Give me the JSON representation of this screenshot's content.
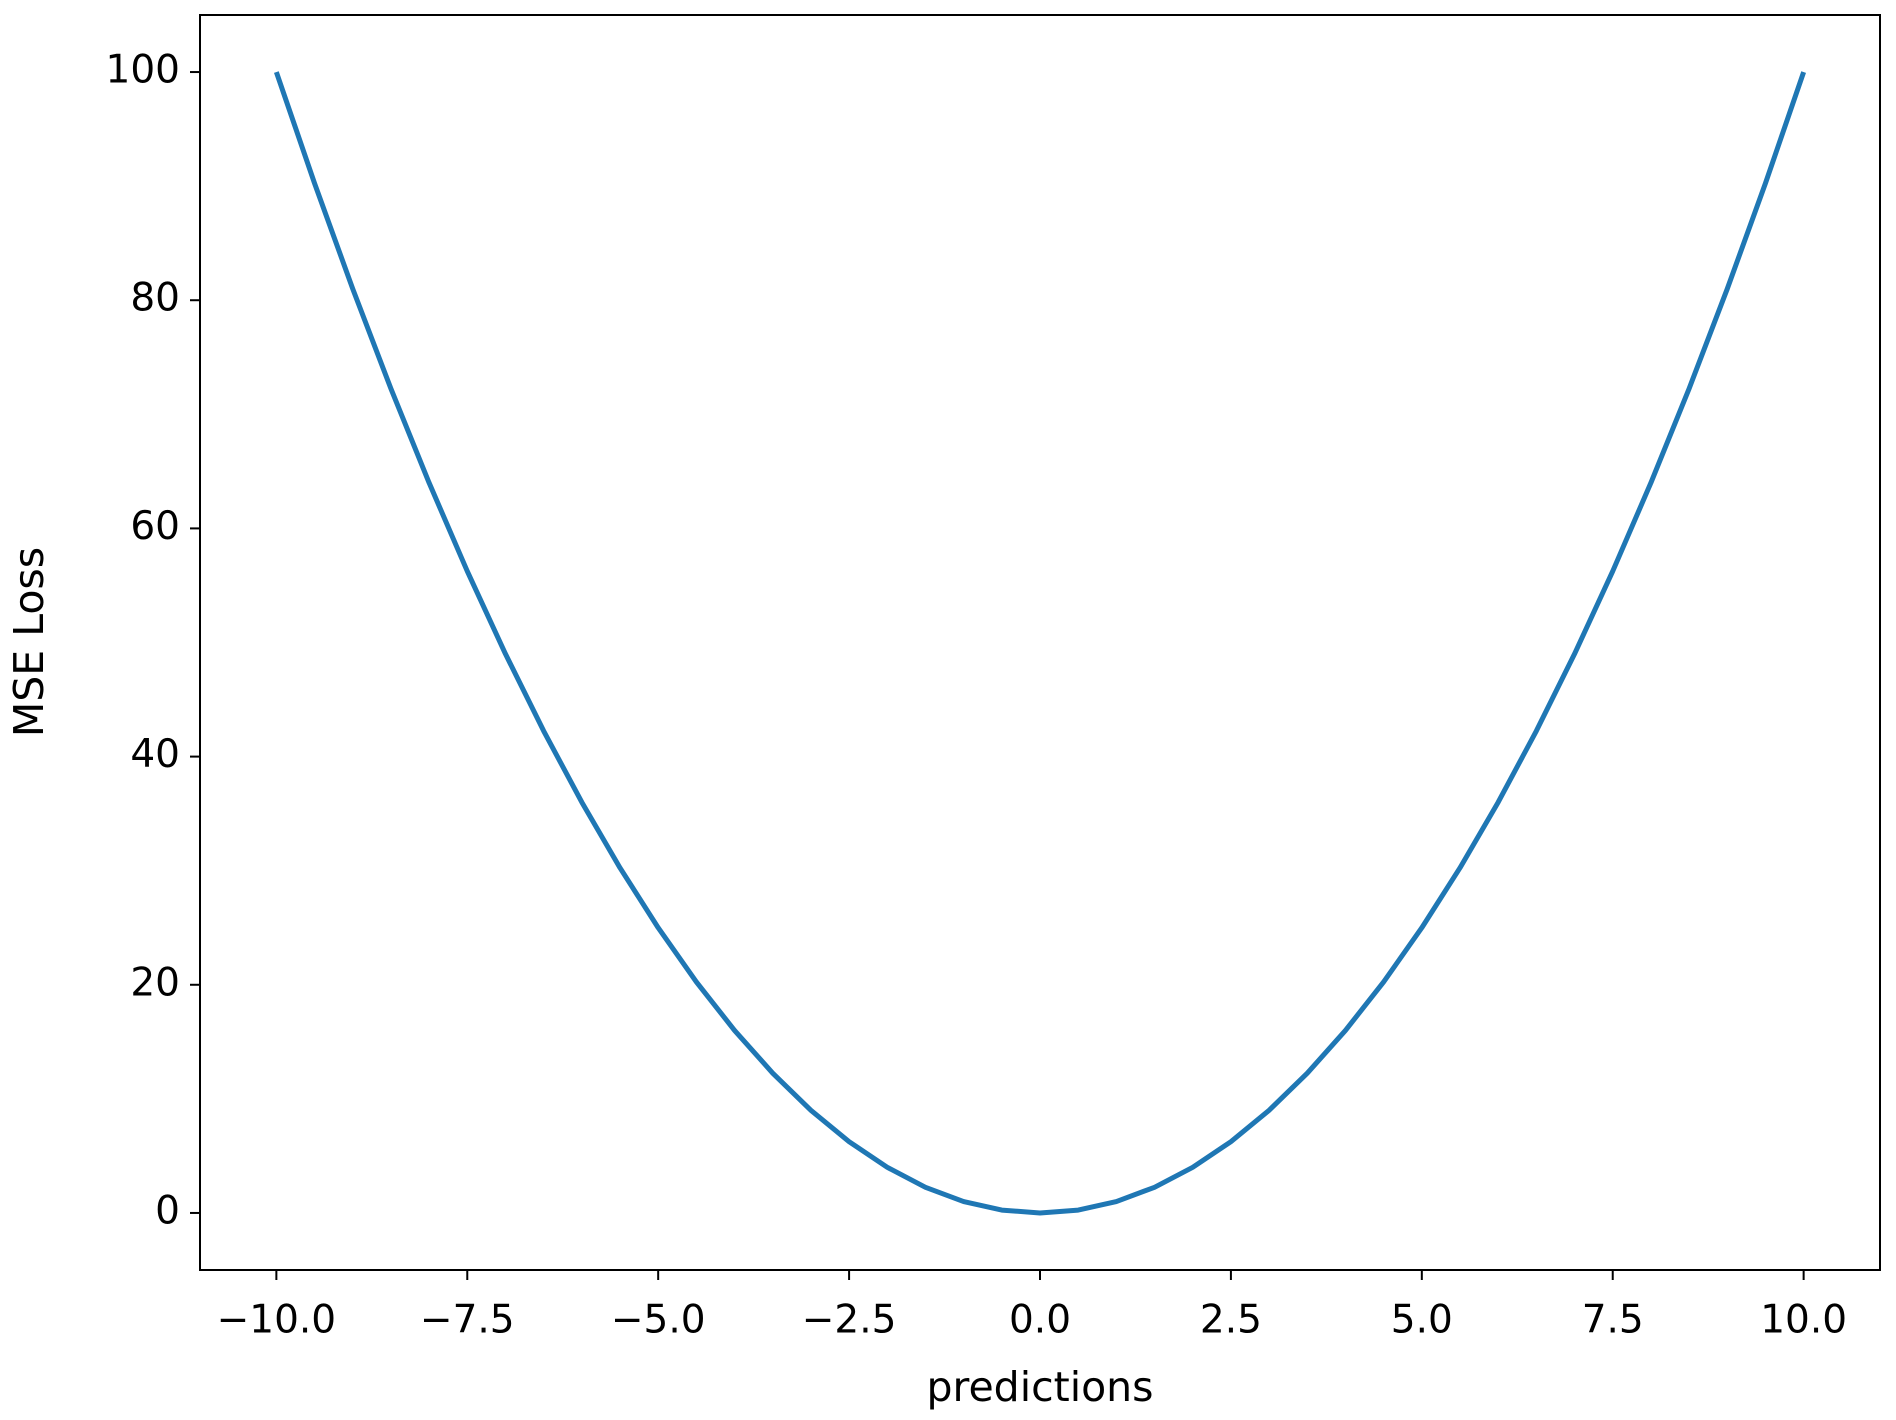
{
  "chart_data": {
    "type": "line",
    "xlabel": "predictions",
    "ylabel": "MSE Loss",
    "x": [
      -10,
      -9.5,
      -9,
      -8.5,
      -8,
      -7.5,
      -7,
      -6.5,
      -6,
      -5.5,
      -5,
      -4.5,
      -4,
      -3.5,
      -3,
      -2.5,
      -2,
      -1.5,
      -1,
      -0.5,
      0,
      0.5,
      1,
      1.5,
      2,
      2.5,
      3,
      3.5,
      4,
      4.5,
      5,
      5.5,
      6,
      6.5,
      7,
      7.5,
      8,
      8.5,
      9,
      9.5,
      10
    ],
    "values": [
      100,
      90.25,
      81,
      72.25,
      64,
      56.25,
      49,
      42.25,
      36,
      30.25,
      25,
      20.25,
      16,
      12.25,
      9,
      6.25,
      4,
      2.25,
      1,
      0.25,
      0,
      0.25,
      1,
      2.25,
      4,
      6.25,
      9,
      12.25,
      16,
      20.25,
      25,
      30.25,
      36,
      42.25,
      49,
      56.25,
      64,
      72.25,
      81,
      90.25,
      100
    ],
    "color": "#1f77b4",
    "xlim": [
      -11,
      11
    ],
    "xticks": [
      {
        "value": -10,
        "label": "−10.0"
      },
      {
        "value": -7.5,
        "label": "−7.5"
      },
      {
        "value": -5,
        "label": "−5.0"
      },
      {
        "value": -2.5,
        "label": "−2.5"
      },
      {
        "value": 0,
        "label": "0.0"
      },
      2.5,
      {
        "value": 5,
        "label": "5.0"
      },
      7.5,
      {
        "value": 10,
        "label": "10.0"
      }
    ],
    "ylim": [
      -5,
      105
    ],
    "yticks": [
      0,
      20,
      40,
      60,
      80,
      100
    ],
    "grid": false
  }
}
